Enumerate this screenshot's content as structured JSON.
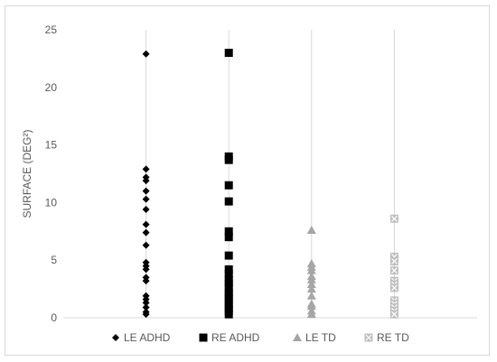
{
  "chart_data": {
    "type": "scatter",
    "title": "",
    "xlabel": "",
    "ylabel": "SURFACE (DEG²)",
    "ylim": [
      0,
      25
    ],
    "yticks": [
      0,
      5,
      10,
      15,
      20,
      25
    ],
    "grid": "vertical",
    "legend_position": "bottom",
    "categories": [
      "LE ADHD",
      "RE ADHD",
      "LE TD",
      "RE TD"
    ],
    "series": [
      {
        "name": "LE ADHD",
        "marker": "diamond",
        "color": "#000000",
        "values": [
          22.9,
          12.9,
          12.2,
          11.9,
          11.0,
          10.3,
          9.4,
          8.1,
          7.4,
          6.3,
          4.8,
          4.5,
          4.2,
          3.5,
          3.2,
          1.9,
          1.6,
          1.3,
          0.9,
          0.5,
          0.3
        ]
      },
      {
        "name": "RE ADHD",
        "marker": "square",
        "color": "#000000",
        "values": [
          23.0,
          14.0,
          13.7,
          11.5,
          10.1,
          7.5,
          7.0,
          5.4,
          4.2,
          3.8,
          3.3,
          3.0,
          2.6,
          2.2,
          1.9,
          1.6,
          1.2,
          0.9,
          0.6,
          0.3
        ]
      },
      {
        "name": "LE TD",
        "marker": "triangle",
        "color": "#a6a6a6",
        "values": [
          7.6,
          4.7,
          4.4,
          4.1,
          3.6,
          3.3,
          2.9,
          2.5,
          1.9,
          1.2,
          1.0,
          0.6,
          0.3
        ]
      },
      {
        "name": "RE TD",
        "marker": "square-x",
        "color": "#bfbfbf",
        "values": [
          8.6,
          5.3,
          4.9,
          4.1,
          3.2,
          2.9,
          2.6,
          1.5,
          1.2,
          0.9,
          0.6,
          0.3
        ]
      }
    ]
  }
}
